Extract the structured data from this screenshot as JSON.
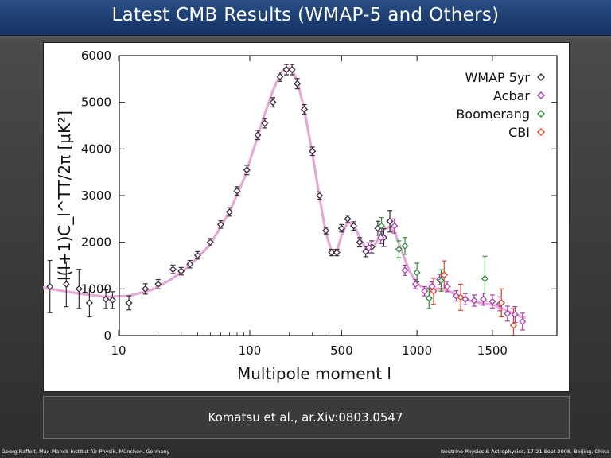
{
  "slide": {
    "title": "Latest CMB Results (WMAP-5 and Others)",
    "caption": "Komatsu et al., ar.Xiv:0803.0547",
    "footer_left": "Georg Raffelt, Max-Planck-Institut für Physik, München, Germany",
    "footer_right": "Neutrino Physics & Astrophysics, 17-21 Sept 2008, Beijing, China"
  },
  "chart_data": {
    "type": "scatter",
    "xlabel": "Multipole moment  l",
    "ylabel": "l(l+1)C_l^TT/2π [μK²]",
    "xscale": "piecewise (log below 500, linear above)",
    "xticks": [
      "10",
      "100",
      "500",
      "1000",
      "1500"
    ],
    "yticks": [
      "0",
      "1000",
      "2000",
      "3000",
      "4000",
      "5000",
      "6000"
    ],
    "ylim": [
      0,
      6000
    ],
    "legend_position": "top-right",
    "series": [
      {
        "name": "WMAP 5yr",
        "color": "#3a2a3a",
        "points": [
          {
            "x": 2,
            "y": 180,
            "err": 650
          },
          {
            "x": 3,
            "y": 1050,
            "err": 560
          },
          {
            "x": 4,
            "y": 1100,
            "err": 480
          },
          {
            "x": 5,
            "y": 1000,
            "err": 420
          },
          {
            "x": 6,
            "y": 700,
            "err": 300
          },
          {
            "x": 8,
            "y": 780,
            "err": 200
          },
          {
            "x": 9,
            "y": 760,
            "err": 180
          },
          {
            "x": 12,
            "y": 700,
            "err": 150
          },
          {
            "x": 16,
            "y": 1000,
            "err": 110
          },
          {
            "x": 20,
            "y": 1100,
            "err": 100
          },
          {
            "x": 26,
            "y": 1420,
            "err": 90
          },
          {
            "x": 30,
            "y": 1380,
            "err": 80
          },
          {
            "x": 35,
            "y": 1530,
            "err": 80
          },
          {
            "x": 40,
            "y": 1720,
            "err": 80
          },
          {
            "x": 50,
            "y": 2000,
            "err": 80
          },
          {
            "x": 60,
            "y": 2380,
            "err": 80
          },
          {
            "x": 70,
            "y": 2650,
            "err": 90
          },
          {
            "x": 80,
            "y": 3100,
            "err": 90
          },
          {
            "x": 95,
            "y": 3550,
            "err": 100
          },
          {
            "x": 115,
            "y": 4300,
            "err": 100
          },
          {
            "x": 130,
            "y": 4550,
            "err": 100
          },
          {
            "x": 150,
            "y": 5000,
            "err": 100
          },
          {
            "x": 170,
            "y": 5550,
            "err": 100
          },
          {
            "x": 190,
            "y": 5700,
            "err": 110
          },
          {
            "x": 210,
            "y": 5700,
            "err": 110
          },
          {
            "x": 230,
            "y": 5400,
            "err": 110
          },
          {
            "x": 260,
            "y": 4850,
            "err": 100
          },
          {
            "x": 300,
            "y": 3950,
            "err": 90
          },
          {
            "x": 340,
            "y": 3000,
            "err": 80
          },
          {
            "x": 380,
            "y": 2250,
            "err": 70
          },
          {
            "x": 420,
            "y": 1780,
            "err": 70
          },
          {
            "x": 460,
            "y": 1780,
            "err": 70
          },
          {
            "x": 500,
            "y": 2300,
            "err": 80
          },
          {
            "x": 540,
            "y": 2500,
            "err": 80
          },
          {
            "x": 580,
            "y": 2350,
            "err": 90
          },
          {
            "x": 620,
            "y": 2000,
            "err": 100
          },
          {
            "x": 660,
            "y": 1800,
            "err": 110
          },
          {
            "x": 700,
            "y": 1900,
            "err": 130
          },
          {
            "x": 740,
            "y": 2300,
            "err": 150
          },
          {
            "x": 780,
            "y": 2100,
            "err": 190
          },
          {
            "x": 820,
            "y": 2450,
            "err": 230
          }
        ]
      },
      {
        "name": "Acbar",
        "color": "#a23fa8",
        "points": [
          {
            "x": 680,
            "y": 1880,
            "err": 110
          },
          {
            "x": 760,
            "y": 2100,
            "err": 130
          },
          {
            "x": 850,
            "y": 2350,
            "err": 150
          },
          {
            "x": 920,
            "y": 1400,
            "err": 110
          },
          {
            "x": 990,
            "y": 1100,
            "err": 100
          },
          {
            "x": 1050,
            "y": 950,
            "err": 100
          },
          {
            "x": 1100,
            "y": 1050,
            "err": 100
          },
          {
            "x": 1150,
            "y": 1200,
            "err": 110
          },
          {
            "x": 1200,
            "y": 1050,
            "err": 110
          },
          {
            "x": 1260,
            "y": 850,
            "err": 110
          },
          {
            "x": 1320,
            "y": 780,
            "err": 120
          },
          {
            "x": 1380,
            "y": 750,
            "err": 120
          },
          {
            "x": 1440,
            "y": 780,
            "err": 130
          },
          {
            "x": 1500,
            "y": 730,
            "err": 140
          },
          {
            "x": 1550,
            "y": 680,
            "err": 150
          },
          {
            "x": 1600,
            "y": 470,
            "err": 160
          },
          {
            "x": 1650,
            "y": 450,
            "err": 170
          },
          {
            "x": 1700,
            "y": 300,
            "err": 180
          }
        ]
      },
      {
        "name": "Boomerang",
        "color": "#2f8a3a",
        "points": [
          {
            "x": 765,
            "y": 2350,
            "err": 180
          },
          {
            "x": 880,
            "y": 1850,
            "err": 180
          },
          {
            "x": 920,
            "y": 1920,
            "err": 180
          },
          {
            "x": 1000,
            "y": 1350,
            "err": 200
          },
          {
            "x": 1080,
            "y": 800,
            "err": 220
          },
          {
            "x": 1160,
            "y": 1180,
            "err": 230
          },
          {
            "x": 1450,
            "y": 1220,
            "err": 480
          }
        ]
      },
      {
        "name": "CBI",
        "color": "#d44a2a",
        "points": [
          {
            "x": 1110,
            "y": 950,
            "err": 280
          },
          {
            "x": 1180,
            "y": 1300,
            "err": 300
          },
          {
            "x": 1290,
            "y": 820,
            "err": 280
          },
          {
            "x": 1560,
            "y": 700,
            "err": 300
          },
          {
            "x": 1640,
            "y": 220,
            "err": 360
          }
        ]
      }
    ]
  }
}
